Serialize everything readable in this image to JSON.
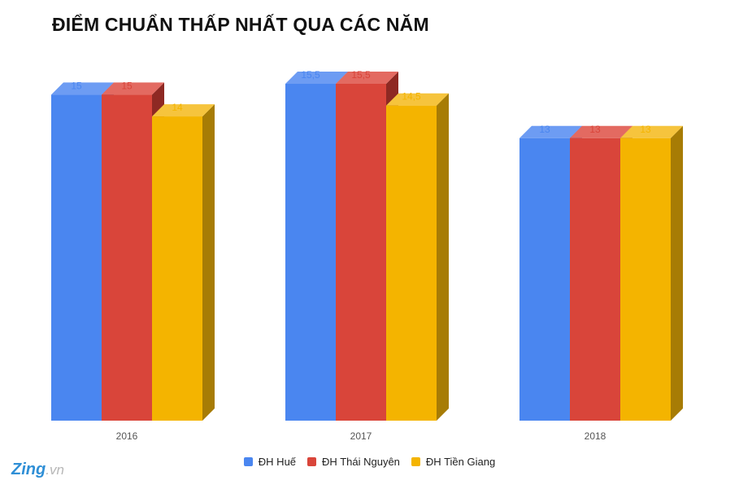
{
  "chart_data": {
    "type": "bar",
    "title": "ĐIỂM CHUẨN THẤP NHẤT QUA CÁC NĂM",
    "categories": [
      "2016",
      "2017",
      "2018"
    ],
    "series": [
      {
        "name": "ĐH Huế",
        "values": [
          15,
          15.5,
          13
        ],
        "labels": [
          "15",
          "15,5",
          "13"
        ],
        "color": "#4a86f0",
        "top_color": "#6d9cf3",
        "side_color": "#3464b8"
      },
      {
        "name": "ĐH Thái Nguyên",
        "values": [
          15,
          15.5,
          13
        ],
        "labels": [
          "15",
          "15,5",
          "13"
        ],
        "color": "#d9453a",
        "top_color": "#e36a61",
        "side_color": "#8e2923"
      },
      {
        "name": "ĐH Tiền Giang",
        "values": [
          14,
          14.5,
          13
        ],
        "labels": [
          "14",
          "14,5",
          "13"
        ],
        "color": "#f4b400",
        "top_color": "#f6c43d",
        "side_color": "#a77c05"
      }
    ],
    "ylim": [
      0,
      15.5
    ],
    "grid": false,
    "legend_position": "bottom",
    "style": "3d"
  },
  "logo": {
    "main": "Zing",
    "tld": ".vn"
  }
}
